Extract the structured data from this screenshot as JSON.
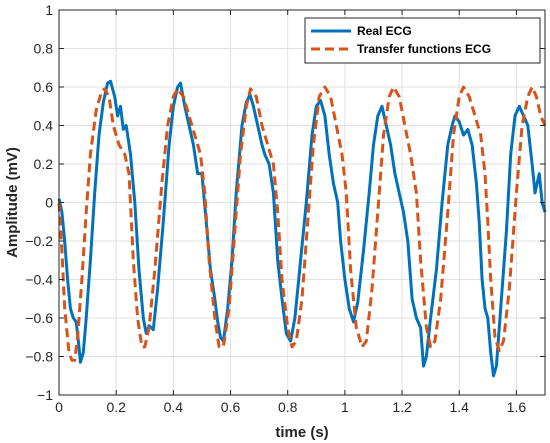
{
  "chart_data": {
    "type": "line",
    "title": "",
    "xlabel": "time (s)",
    "ylabel": "Amplitude (mV)",
    "xlim": [
      0,
      1.7
    ],
    "ylim": [
      -1,
      1
    ],
    "grid": true,
    "legend_position": "top-right",
    "x_ticks": [
      0,
      0.2,
      0.4,
      0.6,
      0.8,
      1,
      1.2,
      1.4,
      1.6
    ],
    "x_tick_labels": [
      "0",
      "0.2",
      "0.4",
      "0.6",
      "0.8",
      "1",
      "1.2",
      "1.4",
      "1.6"
    ],
    "y_ticks": [
      -1,
      -0.8,
      -0.6,
      -0.4,
      -0.2,
      0,
      0.2,
      0.4,
      0.6,
      0.8,
      1
    ],
    "y_tick_labels": [
      "−1",
      "−0.8",
      "−0.6",
      "−0.4",
      "−0.2",
      "0",
      "0.2",
      "0.4",
      "0.6",
      "0.8",
      "1"
    ],
    "series": [
      {
        "name": "Real ECG",
        "color": "#0072BD",
        "style": "solid",
        "points": [
          [
            0.0,
            0.02
          ],
          [
            0.01,
            -0.05
          ],
          [
            0.02,
            -0.2
          ],
          [
            0.03,
            -0.4
          ],
          [
            0.04,
            -0.55
          ],
          [
            0.05,
            -0.6
          ],
          [
            0.06,
            -0.62
          ],
          [
            0.07,
            -0.75
          ],
          [
            0.075,
            -0.83
          ],
          [
            0.085,
            -0.78
          ],
          [
            0.095,
            -0.6
          ],
          [
            0.11,
            -0.3
          ],
          [
            0.125,
            0.05
          ],
          [
            0.14,
            0.35
          ],
          [
            0.155,
            0.52
          ],
          [
            0.17,
            0.62
          ],
          [
            0.18,
            0.63
          ],
          [
            0.195,
            0.55
          ],
          [
            0.205,
            0.45
          ],
          [
            0.215,
            0.5
          ],
          [
            0.225,
            0.38
          ],
          [
            0.235,
            0.4
          ],
          [
            0.25,
            0.25
          ],
          [
            0.265,
            0.0
          ],
          [
            0.28,
            -0.35
          ],
          [
            0.295,
            -0.6
          ],
          [
            0.305,
            -0.68
          ],
          [
            0.315,
            -0.64
          ],
          [
            0.33,
            -0.66
          ],
          [
            0.345,
            -0.45
          ],
          [
            0.365,
            -0.1
          ],
          [
            0.385,
            0.3
          ],
          [
            0.4,
            0.5
          ],
          [
            0.415,
            0.6
          ],
          [
            0.425,
            0.62
          ],
          [
            0.44,
            0.5
          ],
          [
            0.455,
            0.4
          ],
          [
            0.47,
            0.3
          ],
          [
            0.485,
            0.15
          ],
          [
            0.5,
            0.15
          ],
          [
            0.515,
            -0.1
          ],
          [
            0.53,
            -0.35
          ],
          [
            0.545,
            -0.5
          ],
          [
            0.555,
            -0.62
          ],
          [
            0.565,
            -0.7
          ],
          [
            0.575,
            -0.72
          ],
          [
            0.59,
            -0.55
          ],
          [
            0.605,
            -0.3
          ],
          [
            0.62,
            0.05
          ],
          [
            0.64,
            0.4
          ],
          [
            0.655,
            0.52
          ],
          [
            0.668,
            0.56
          ],
          [
            0.68,
            0.5
          ],
          [
            0.695,
            0.4
          ],
          [
            0.71,
            0.3
          ],
          [
            0.72,
            0.25
          ],
          [
            0.735,
            0.2
          ],
          [
            0.75,
            0.05
          ],
          [
            0.765,
            -0.3
          ],
          [
            0.78,
            -0.5
          ],
          [
            0.795,
            -0.68
          ],
          [
            0.81,
            -0.72
          ],
          [
            0.825,
            -0.6
          ],
          [
            0.845,
            -0.3
          ],
          [
            0.865,
            0.0
          ],
          [
            0.885,
            0.35
          ],
          [
            0.9,
            0.5
          ],
          [
            0.915,
            0.53
          ],
          [
            0.93,
            0.45
          ],
          [
            0.945,
            0.25
          ],
          [
            0.96,
            0.1
          ],
          [
            0.975,
            0.0
          ],
          [
            0.985,
            -0.2
          ],
          [
            1.0,
            -0.4
          ],
          [
            1.015,
            -0.55
          ],
          [
            1.03,
            -0.62
          ],
          [
            1.045,
            -0.52
          ],
          [
            1.065,
            -0.25
          ],
          [
            1.085,
            0.05
          ],
          [
            1.1,
            0.3
          ],
          [
            1.115,
            0.45
          ],
          [
            1.13,
            0.5
          ],
          [
            1.145,
            0.4
          ],
          [
            1.16,
            0.3
          ],
          [
            1.175,
            0.15
          ],
          [
            1.19,
            0.05
          ],
          [
            1.205,
            -0.05
          ],
          [
            1.22,
            -0.2
          ],
          [
            1.235,
            -0.5
          ],
          [
            1.25,
            -0.6
          ],
          [
            1.265,
            -0.65
          ],
          [
            1.275,
            -0.85
          ],
          [
            1.285,
            -0.8
          ],
          [
            1.3,
            -0.6
          ],
          [
            1.32,
            -0.35
          ],
          [
            1.34,
            0.0
          ],
          [
            1.36,
            0.3
          ],
          [
            1.375,
            0.4
          ],
          [
            1.385,
            0.45
          ],
          [
            1.4,
            0.42
          ],
          [
            1.415,
            0.35
          ],
          [
            1.43,
            0.38
          ],
          [
            1.445,
            0.3
          ],
          [
            1.46,
            0.1
          ],
          [
            1.47,
            -0.1
          ],
          [
            1.48,
            -0.4
          ],
          [
            1.49,
            -0.55
          ],
          [
            1.5,
            -0.6
          ],
          [
            1.51,
            -0.78
          ],
          [
            1.52,
            -0.9
          ],
          [
            1.53,
            -0.85
          ],
          [
            1.545,
            -0.55
          ],
          [
            1.565,
            -0.15
          ],
          [
            1.58,
            0.25
          ],
          [
            1.595,
            0.45
          ],
          [
            1.61,
            0.5
          ],
          [
            1.625,
            0.45
          ],
          [
            1.64,
            0.4
          ],
          [
            1.655,
            0.2
          ],
          [
            1.665,
            0.05
          ],
          [
            1.68,
            0.15
          ],
          [
            1.69,
            0.0
          ],
          [
            1.7,
            -0.05
          ]
        ]
      },
      {
        "name": "Transfer functions ECG",
        "color": "#D95319",
        "style": "dashed",
        "points": [
          [
            0.0,
            0.0
          ],
          [
            0.01,
            -0.25
          ],
          [
            0.02,
            -0.55
          ],
          [
            0.035,
            -0.78
          ],
          [
            0.045,
            -0.82
          ],
          [
            0.055,
            -0.82
          ],
          [
            0.065,
            -0.7
          ],
          [
            0.08,
            -0.4
          ],
          [
            0.095,
            -0.05
          ],
          [
            0.11,
            0.25
          ],
          [
            0.13,
            0.48
          ],
          [
            0.15,
            0.58
          ],
          [
            0.16,
            0.59
          ],
          [
            0.175,
            0.55
          ],
          [
            0.19,
            0.4
          ],
          [
            0.21,
            0.3
          ],
          [
            0.23,
            0.25
          ],
          [
            0.245,
            0.15
          ],
          [
            0.26,
            -0.3
          ],
          [
            0.275,
            -0.6
          ],
          [
            0.29,
            -0.75
          ],
          [
            0.3,
            -0.75
          ],
          [
            0.315,
            -0.65
          ],
          [
            0.335,
            -0.35
          ],
          [
            0.36,
            0.1
          ],
          [
            0.38,
            0.4
          ],
          [
            0.4,
            0.55
          ],
          [
            0.415,
            0.59
          ],
          [
            0.435,
            0.55
          ],
          [
            0.455,
            0.45
          ],
          [
            0.475,
            0.35
          ],
          [
            0.495,
            0.25
          ],
          [
            0.51,
            0.05
          ],
          [
            0.525,
            -0.3
          ],
          [
            0.545,
            -0.6
          ],
          [
            0.56,
            -0.75
          ],
          [
            0.575,
            -0.75
          ],
          [
            0.595,
            -0.55
          ],
          [
            0.615,
            -0.15
          ],
          [
            0.635,
            0.25
          ],
          [
            0.655,
            0.5
          ],
          [
            0.67,
            0.59
          ],
          [
            0.69,
            0.55
          ],
          [
            0.71,
            0.4
          ],
          [
            0.73,
            0.3
          ],
          [
            0.75,
            0.2
          ],
          [
            0.765,
            -0.05
          ],
          [
            0.78,
            -0.4
          ],
          [
            0.8,
            -0.65
          ],
          [
            0.815,
            -0.75
          ],
          [
            0.83,
            -0.72
          ],
          [
            0.85,
            -0.5
          ],
          [
            0.87,
            -0.1
          ],
          [
            0.89,
            0.3
          ],
          [
            0.91,
            0.55
          ],
          [
            0.93,
            0.6
          ],
          [
            0.95,
            0.55
          ],
          [
            0.97,
            0.4
          ],
          [
            0.99,
            0.25
          ],
          [
            1.005,
            0.05
          ],
          [
            1.02,
            -0.35
          ],
          [
            1.04,
            -0.65
          ],
          [
            1.06,
            -0.75
          ],
          [
            1.075,
            -0.72
          ],
          [
            1.095,
            -0.45
          ],
          [
            1.115,
            -0.05
          ],
          [
            1.135,
            0.35
          ],
          [
            1.155,
            0.55
          ],
          [
            1.17,
            0.6
          ],
          [
            1.19,
            0.55
          ],
          [
            1.21,
            0.4
          ],
          [
            1.23,
            0.25
          ],
          [
            1.25,
            0.05
          ],
          [
            1.265,
            -0.3
          ],
          [
            1.285,
            -0.65
          ],
          [
            1.3,
            -0.75
          ],
          [
            1.315,
            -0.72
          ],
          [
            1.335,
            -0.5
          ],
          [
            1.36,
            -0.05
          ],
          [
            1.38,
            0.35
          ],
          [
            1.4,
            0.55
          ],
          [
            1.415,
            0.6
          ],
          [
            1.435,
            0.55
          ],
          [
            1.455,
            0.45
          ],
          [
            1.475,
            0.35
          ],
          [
            1.49,
            0.15
          ],
          [
            1.5,
            -0.1
          ],
          [
            1.51,
            -0.4
          ],
          [
            1.525,
            -0.7
          ],
          [
            1.54,
            -0.77
          ],
          [
            1.555,
            -0.72
          ],
          [
            1.575,
            -0.45
          ],
          [
            1.6,
            0.05
          ],
          [
            1.62,
            0.4
          ],
          [
            1.64,
            0.55
          ],
          [
            1.655,
            0.6
          ],
          [
            1.67,
            0.55
          ],
          [
            1.685,
            0.45
          ],
          [
            1.7,
            0.4
          ]
        ]
      }
    ]
  }
}
